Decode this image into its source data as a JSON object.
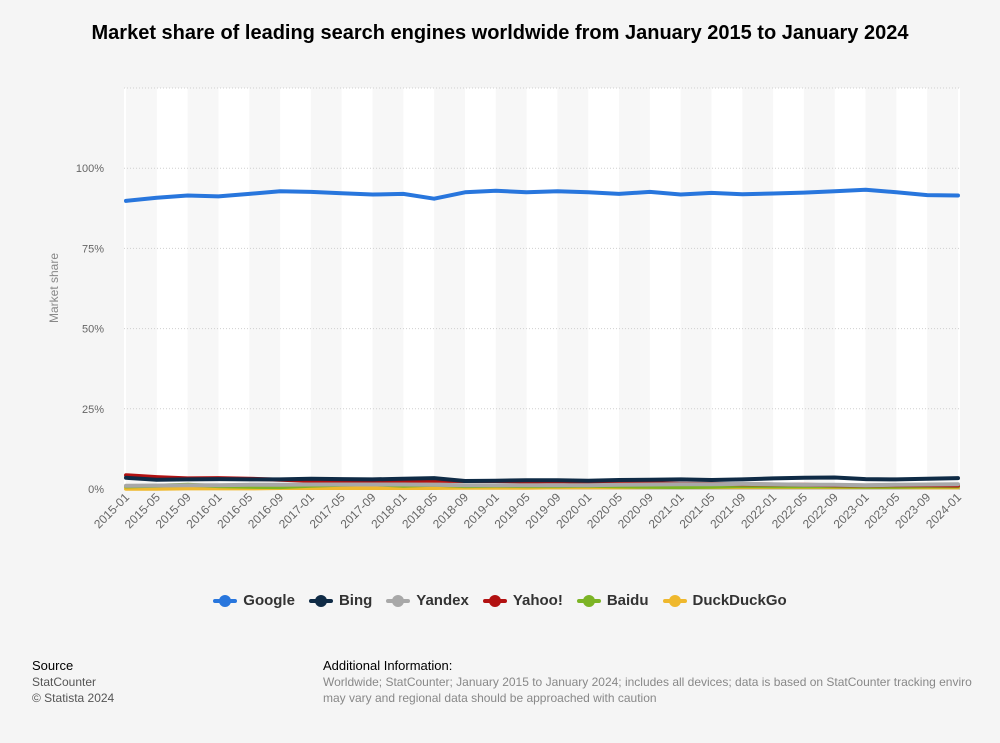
{
  "chart_data": {
    "type": "line",
    "title": "Market share of leading search engines worldwide from January 2015 to January 2024",
    "xlabel": "",
    "ylabel": "Market share",
    "ylim": [
      0,
      125
    ],
    "y_ticks": [
      "0%",
      "25%",
      "50%",
      "75%",
      "100%"
    ],
    "y_tick_values": [
      0,
      25,
      50,
      75,
      100
    ],
    "x_tick_labels": [
      "2015-01",
      "2015-05",
      "2015-09",
      "2016-01",
      "2016-05",
      "2016-09",
      "2017-01",
      "2017-05",
      "2017-09",
      "2018-01",
      "2018-05",
      "2018-09",
      "2019-01",
      "2019-05",
      "2019-09",
      "2020-01",
      "2020-05",
      "2020-09",
      "2021-01",
      "2021-05",
      "2021-09",
      "2022-01",
      "2022-05",
      "2022-09",
      "2023-01",
      "2023-05",
      "2023-09",
      "2024-01"
    ],
    "legend_position": "bottom",
    "series": [
      {
        "name": "Google",
        "color": "#2876dd",
        "values": [
          89.8,
          90.8,
          91.5,
          91.2,
          92.0,
          92.8,
          92.6,
          92.2,
          91.8,
          92.0,
          90.5,
          92.5,
          93.0,
          92.5,
          92.8,
          92.5,
          92.0,
          92.6,
          91.8,
          92.3,
          91.9,
          92.1,
          92.4,
          92.8,
          93.3,
          92.5,
          91.6,
          91.5
        ]
      },
      {
        "name": "Bing",
        "color": "#0f2b46",
        "values": [
          3.5,
          2.9,
          3.0,
          3.1,
          3.0,
          3.0,
          3.2,
          3.1,
          3.0,
          3.2,
          3.4,
          2.5,
          2.6,
          2.7,
          2.7,
          2.6,
          2.8,
          2.9,
          3.0,
          2.8,
          3.0,
          3.3,
          3.5,
          3.6,
          3.1,
          3.0,
          3.2,
          3.4
        ]
      },
      {
        "name": "Yandex",
        "color": "#a8a8a8",
        "values": [
          1.0,
          1.1,
          1.2,
          1.2,
          1.3,
          1.3,
          1.4,
          1.4,
          1.4,
          1.4,
          1.3,
          1.2,
          1.2,
          1.2,
          1.2,
          1.2,
          1.3,
          1.4,
          1.5,
          1.5,
          1.6,
          1.5,
          1.3,
          1.3,
          1.2,
          1.3,
          1.4,
          1.5
        ]
      },
      {
        "name": "Yahoo!",
        "color": "#b21111",
        "values": [
          4.3,
          3.7,
          3.3,
          3.4,
          3.2,
          2.9,
          2.6,
          2.5,
          2.4,
          2.5,
          2.6,
          2.5,
          2.5,
          2.3,
          2.4,
          2.2,
          2.0,
          1.8,
          1.6,
          1.6,
          1.5,
          1.4,
          1.3,
          1.2,
          1.1,
          1.2,
          1.2,
          1.1
        ]
      },
      {
        "name": "Baidu",
        "color": "#7cb425",
        "values": [
          0.8,
          1.0,
          1.3,
          0.9,
          0.7,
          0.6,
          1.0,
          1.3,
          1.5,
          1.0,
          1.3,
          0.9,
          1.0,
          0.9,
          0.9,
          1.0,
          0.8,
          0.7,
          0.6,
          0.7,
          0.9,
          0.8,
          0.8,
          0.8,
          0.7,
          0.7,
          0.8,
          0.8
        ]
      },
      {
        "name": "DuckDuckGo",
        "color": "#efb82d",
        "values": [
          0.1,
          0.1,
          0.2,
          0.2,
          0.2,
          0.3,
          0.3,
          0.3,
          0.3,
          0.3,
          0.3,
          0.4,
          0.4,
          0.4,
          0.5,
          0.5,
          0.5,
          0.6,
          0.6,
          0.6,
          0.6,
          0.6,
          0.6,
          0.6,
          0.6,
          0.6,
          0.5,
          0.5
        ]
      }
    ]
  },
  "footer": {
    "source_heading": "Source",
    "source_name": "StatCounter",
    "copyright": "© Statista 2024",
    "info_heading": "Additional Information:",
    "info_line1": "Worldwide; StatCounter; January 2015 to January 2024; includes all devices; data is based on StatCounter tracking enviro",
    "info_line2": "may vary and regional data should be approached with caution"
  }
}
